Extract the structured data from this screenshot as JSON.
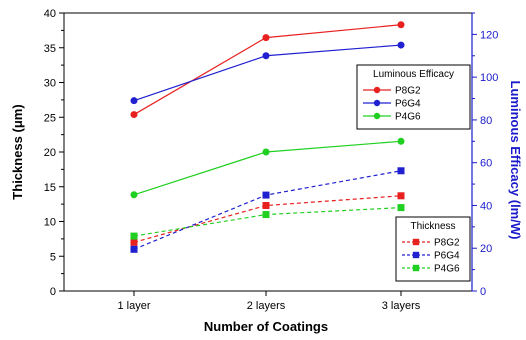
{
  "chart_data": {
    "type": "line",
    "categories": [
      "1 layer",
      "2 layers",
      "3 layers"
    ],
    "xlabel": "Number of Coatings",
    "ylabel_left": "Thickness (μm)",
    "ylabel_right": "Luminous Efficacy (lm/W)",
    "ylim_left": [
      0,
      40
    ],
    "yticks_left": [
      0,
      5,
      10,
      15,
      20,
      25,
      30,
      35,
      40
    ],
    "ylim_right": [
      0,
      130
    ],
    "yticks_right": [
      0,
      20,
      40,
      60,
      80,
      100,
      120
    ],
    "grid": false,
    "legends": [
      {
        "title": "Luminous Efficacy",
        "placement": "right-upper",
        "axis": "right",
        "series": [
          {
            "name": "P8G2",
            "color": "#e82020",
            "style": "solid",
            "marker": "circle",
            "values": [
              82.5,
              118.5,
              124.5
            ]
          },
          {
            "name": "P6G4",
            "color": "#2020d0",
            "style": "solid",
            "marker": "circle",
            "values": [
              89,
              110,
              115
            ]
          },
          {
            "name": "P4G6",
            "color": "#20d020",
            "style": "solid",
            "marker": "circle",
            "values": [
              45,
              65,
              70
            ]
          }
        ]
      },
      {
        "title": "Thickness",
        "placement": "bottom-right",
        "axis": "left",
        "series": [
          {
            "name": "P8G2",
            "color": "#e82020",
            "style": "dashed",
            "marker": "square",
            "values": [
              7,
              12.3,
              13.7
            ]
          },
          {
            "name": "P6G4",
            "color": "#2020d0",
            "style": "dashed",
            "marker": "square",
            "values": [
              6,
              13.8,
              17.3
            ]
          },
          {
            "name": "P4G6",
            "color": "#20d020",
            "style": "dashed",
            "marker": "square",
            "values": [
              7.9,
              11,
              12
            ]
          }
        ]
      }
    ]
  }
}
